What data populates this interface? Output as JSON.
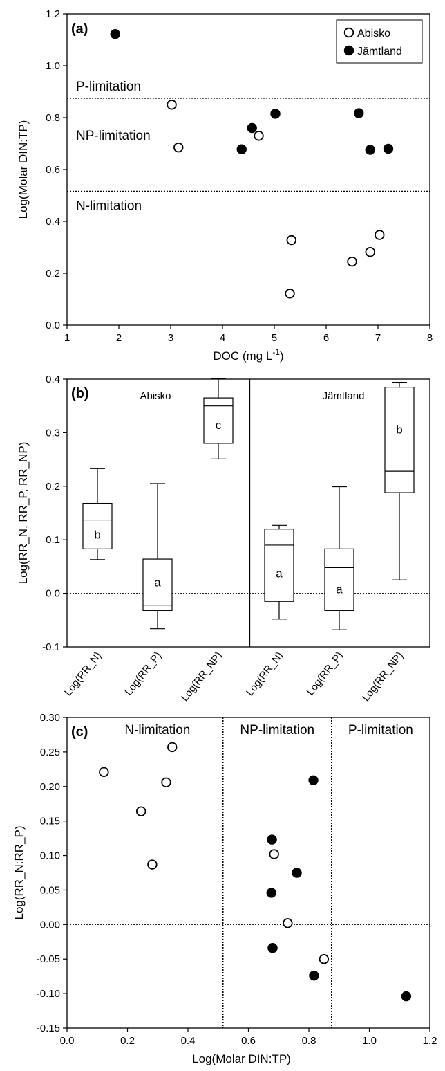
{
  "chart_data": [
    {
      "type": "scatter",
      "panel_label": "(a)",
      "xlabel": "DOC (mg L",
      "xlabel_sup": "-1",
      "xlabel_end": ")",
      "ylabel": "Log(Molar DIN:TP)",
      "xlim": [
        1,
        8
      ],
      "ylim": [
        0,
        1.2
      ],
      "xticks": [
        "1",
        "2",
        "3",
        "4",
        "5",
        "6",
        "7",
        "8"
      ],
      "yticks": [
        "0.0",
        "0.2",
        "0.4",
        "0.6",
        "0.8",
        "1.0",
        "1.2"
      ],
      "legend": {
        "placement": "top-right",
        "entries": [
          "Abisko",
          "Jämtland"
        ]
      },
      "thresholds": [
        0.875,
        0.516
      ],
      "region_labels": [
        "P-limitation",
        "NP-limitation",
        "N-limitation"
      ],
      "series": [
        {
          "name": "Abisko",
          "marker": "open",
          "points": [
            [
              3.02,
              0.85
            ],
            [
              3.15,
              0.685
            ],
            [
              4.7,
              0.73
            ],
            [
              5.33,
              0.328
            ],
            [
              5.3,
              0.122
            ],
            [
              6.5,
              0.245
            ],
            [
              6.85,
              0.282
            ],
            [
              7.03,
              0.348
            ]
          ]
        },
        {
          "name": "Jämtland",
          "marker": "filled",
          "points": [
            [
              1.93,
              1.122
            ],
            [
              4.37,
              0.678
            ],
            [
              4.57,
              0.76
            ],
            [
              5.02,
              0.815
            ],
            [
              6.63,
              0.817
            ],
            [
              6.85,
              0.676
            ],
            [
              7.2,
              0.68
            ]
          ]
        }
      ]
    },
    {
      "type": "box",
      "panel_label": "(b)",
      "ylabel": "Log(RR_N, RR_P, RR_NP)",
      "ylim": [
        -0.1,
        0.4
      ],
      "yticks": [
        "-0.1",
        "0.0",
        "0.1",
        "0.2",
        "0.3",
        "0.4"
      ],
      "groups": [
        "Abisko",
        "Jämtland"
      ],
      "categories": [
        "Log(RR_N)",
        "Log(RR_P)",
        "Log(RR_NP)",
        "Log(RR_N)",
        "Log(RR_P)",
        "Log(RR_NP)"
      ],
      "boxes": [
        {
          "group": "Abisko",
          "min": 0.063,
          "q1": 0.083,
          "median": 0.137,
          "q3": 0.168,
          "max": 0.233,
          "letter": "b"
        },
        {
          "group": "Abisko",
          "min": -0.066,
          "q1": -0.032,
          "median": -0.022,
          "q3": 0.064,
          "max": 0.205,
          "letter": "a"
        },
        {
          "group": "Abisko",
          "min": 0.251,
          "q1": 0.28,
          "median": 0.35,
          "q3": 0.365,
          "max": 0.401,
          "letter": "c"
        },
        {
          "group": "Jämtland",
          "min": -0.048,
          "q1": -0.015,
          "median": 0.09,
          "q3": 0.12,
          "max": 0.127,
          "letter": "a"
        },
        {
          "group": "Jämtland",
          "min": -0.068,
          "q1": -0.032,
          "median": 0.048,
          "q3": 0.083,
          "max": 0.199,
          "letter": "a"
        },
        {
          "group": "Jämtland",
          "min": 0.025,
          "q1": 0.188,
          "median": 0.228,
          "q3": 0.385,
          "max": 0.394,
          "letter": "b"
        }
      ]
    },
    {
      "type": "scatter",
      "panel_label": "(c)",
      "xlabel": "Log(Molar DIN:TP)",
      "ylabel": "Log(RR_N:RR_P)",
      "xlim": [
        0,
        1.2
      ],
      "ylim": [
        -0.15,
        0.3
      ],
      "xticks": [
        "0.0",
        "0.2",
        "0.4",
        "0.6",
        "0.8",
        "1.0",
        "1.2"
      ],
      "yticks": [
        "-0.15",
        "-0.10",
        "-0.05",
        "0.00",
        "0.05",
        "0.10",
        "0.15",
        "0.20",
        "0.25",
        "0.30"
      ],
      "thresholds": [
        0.516,
        0.875
      ],
      "region_labels": [
        "N-limitation",
        "NP-limitation",
        "P-limitation"
      ],
      "series": [
        {
          "name": "Abisko",
          "marker": "open",
          "points": [
            [
              0.122,
              0.221
            ],
            [
              0.348,
              0.257
            ],
            [
              0.328,
              0.206
            ],
            [
              0.245,
              0.164
            ],
            [
              0.282,
              0.087
            ],
            [
              0.685,
              0.102
            ],
            [
              0.73,
              0.002
            ],
            [
              0.85,
              -0.05
            ]
          ]
        },
        {
          "name": "Jämtland",
          "marker": "filled",
          "points": [
            [
              0.815,
              0.209
            ],
            [
              0.678,
              0.123
            ],
            [
              0.76,
              0.075
            ],
            [
              0.676,
              0.046
            ],
            [
              0.68,
              -0.034
            ],
            [
              0.817,
              -0.074
            ],
            [
              1.122,
              -0.104
            ]
          ]
        }
      ]
    }
  ]
}
